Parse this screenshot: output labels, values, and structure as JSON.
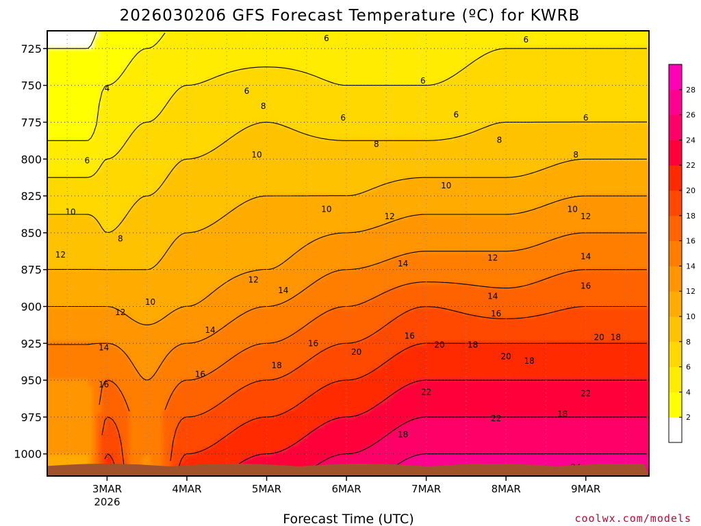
{
  "chart_data": {
    "type": "heatmap",
    "title": "2026030206 GFS Forecast Temperature (ºC) for KWRB",
    "xlabel": "Forecast Time (UTC)",
    "ylabel": "",
    "credit": "coolwx.com/models",
    "y_axis": {
      "quantity": "pressure (hPa)",
      "direction": "decreasing upward",
      "range": [
        1015,
        713
      ],
      "ticks": [
        725,
        750,
        775,
        800,
        825,
        850,
        875,
        900,
        925,
        950,
        975,
        1000
      ]
    },
    "x_axis": {
      "quantity": "forecast date (UTC)",
      "range_days": [
        "2026-03-02T06:00",
        "2026-03-09T19:00"
      ],
      "ticks": [
        {
          "label": "3MAR",
          "sub": "2026",
          "date": "2026-03-03T00:00"
        },
        {
          "label": "4MAR",
          "sub": "",
          "date": "2026-03-04T00:00"
        },
        {
          "label": "5MAR",
          "sub": "",
          "date": "2026-03-05T00:00"
        },
        {
          "label": "6MAR",
          "sub": "",
          "date": "2026-03-06T00:00"
        },
        {
          "label": "7MAR",
          "sub": "",
          "date": "2026-03-07T00:00"
        },
        {
          "label": "8MAR",
          "sub": "",
          "date": "2026-03-08T00:00"
        },
        {
          "label": "9MAR",
          "sub": "",
          "date": "2026-03-09T00:00"
        }
      ]
    },
    "grid": true,
    "colorbar": {
      "placement": "right",
      "levels": [
        0,
        2,
        4,
        6,
        8,
        10,
        12,
        14,
        16,
        18,
        20,
        22,
        24,
        26,
        28,
        30
      ],
      "tick_labels": [
        2,
        4,
        6,
        8,
        10,
        12,
        14,
        16,
        18,
        20,
        22,
        24,
        26,
        28
      ],
      "colors": [
        "#ffffff",
        "#ffff00",
        "#ffec00",
        "#ffd800",
        "#ffc200",
        "#ffab00",
        "#ff9500",
        "#ff7e00",
        "#ff6400",
        "#ff4800",
        "#ff2a00",
        "#ff003a",
        "#ff0068",
        "#ff0090",
        "#ff00b4"
      ]
    },
    "ground_color": "#a0522d",
    "series": [
      {
        "name": "",
        "date": "2026-03-02T18:00",
        "profile": {
          "1000": 12,
          "975": 13,
          "950": 14,
          "925": 14,
          "900": 12,
          "875": 10,
          "850": 9,
          "825": 7,
          "800": 5,
          "775": 3,
          "750": 3,
          "725": 2
        }
      },
      {
        "name": "",
        "date": "2026-03-03T00:00",
        "profile": {
          "1000": 20,
          "975": 18,
          "950": 16,
          "925": 14,
          "900": 12,
          "875": 10,
          "850": 8,
          "825": 7,
          "800": 6,
          "775": 5,
          "750": 4,
          "725": 3
        }
      },
      {
        "name": "",
        "date": "2026-03-03T12:00",
        "profile": {
          "1000": 14,
          "975": 15,
          "950": 14,
          "925": 13,
          "900": 11,
          "875": 10,
          "850": 9,
          "825": 8,
          "800": 7,
          "775": 6,
          "750": 5,
          "725": 4
        }
      },
      {
        "name": "",
        "date": "2026-03-04T00:00",
        "profile": {
          "1000": 20,
          "975": 18,
          "950": 16,
          "925": 14,
          "900": 12,
          "875": 11,
          "850": 10,
          "825": 9,
          "800": 8,
          "775": 7,
          "750": 6,
          "725": 5
        }
      },
      {
        "name": "",
        "date": "2026-03-05T00:00",
        "profile": {
          "1000": 22,
          "975": 20,
          "950": 18,
          "925": 16,
          "900": 14,
          "875": 12,
          "850": 11,
          "825": 10,
          "800": 9,
          "775": 8,
          "750": 7,
          "725": 5
        }
      },
      {
        "name": "",
        "date": "2026-03-06T00:00",
        "profile": {
          "1000": 24,
          "975": 22,
          "950": 20,
          "925": 18,
          "900": 16,
          "875": 14,
          "850": 12,
          "825": 10,
          "800": 9,
          "775": 7,
          "750": 6,
          "725": 5
        }
      },
      {
        "name": "",
        "date": "2026-03-07T00:00",
        "profile": {
          "1000": 26,
          "975": 24,
          "950": 22,
          "925": 20,
          "900": 18,
          "875": 15,
          "850": 13,
          "825": 11,
          "800": 9,
          "775": 7,
          "750": 6,
          "725": 5
        }
      },
      {
        "name": "",
        "date": "2026-03-08T00:00",
        "profile": {
          "1000": 26,
          "975": 24,
          "950": 22,
          "925": 20,
          "900": 17,
          "875": 15,
          "850": 13,
          "825": 11,
          "800": 9,
          "775": 8,
          "750": 7,
          "725": 6
        }
      },
      {
        "name": "",
        "date": "2026-03-09T00:00",
        "profile": {
          "1000": 26,
          "975": 24,
          "950": 22,
          "925": 20,
          "900": 18,
          "875": 16,
          "850": 14,
          "825": 12,
          "800": 10,
          "775": 8,
          "750": 7,
          "725": 6
        }
      }
    ],
    "contour_labels": [
      {
        "text": "4",
        "date": "2026-03-03T00:00",
        "p": 752
      },
      {
        "text": "6",
        "date": "2026-03-04T18:00",
        "p": 754
      },
      {
        "text": "6",
        "date": "2026-03-02T18:00",
        "p": 801
      },
      {
        "text": "6",
        "date": "2026-03-05T18:00",
        "p": 718
      },
      {
        "text": "6",
        "date": "2026-03-06T23:00",
        "p": 747
      },
      {
        "text": "6",
        "date": "2026-03-05T23:00",
        "p": 772
      },
      {
        "text": "6",
        "date": "2026-03-07T09:00",
        "p": 770
      },
      {
        "text": "6",
        "date": "2026-03-08T06:00",
        "p": 719
      },
      {
        "text": "6",
        "date": "2026-03-09T00:00",
        "p": 772
      },
      {
        "text": "8",
        "date": "2026-03-04T23:00",
        "p": 764
      },
      {
        "text": "8",
        "date": "2026-03-06T09:00",
        "p": 790
      },
      {
        "text": "8",
        "date": "2026-03-07T22:00",
        "p": 787
      },
      {
        "text": "8",
        "date": "2026-03-08T21:00",
        "p": 797
      },
      {
        "text": "8",
        "date": "2026-03-03T04:00",
        "p": 854
      },
      {
        "text": "10",
        "date": "2026-03-04T21:00",
        "p": 797
      },
      {
        "text": "10",
        "date": "2026-03-02T13:00",
        "p": 836
      },
      {
        "text": "10",
        "date": "2026-03-05T18:00",
        "p": 834
      },
      {
        "text": "10",
        "date": "2026-03-07T06:00",
        "p": 818
      },
      {
        "text": "10",
        "date": "2026-03-03T13:00",
        "p": 897
      },
      {
        "text": "10",
        "date": "2026-03-08T20:00",
        "p": 834
      },
      {
        "text": "12",
        "date": "2026-03-02T10:00",
        "p": 865
      },
      {
        "text": "12",
        "date": "2026-03-04T20:00",
        "p": 882
      },
      {
        "text": "12",
        "date": "2026-03-03T04:00",
        "p": 904
      },
      {
        "text": "12",
        "date": "2026-03-06T13:00",
        "p": 839
      },
      {
        "text": "12",
        "date": "2026-03-07T20:00",
        "p": 867
      },
      {
        "text": "12",
        "date": "2026-03-09T00:00",
        "p": 839
      },
      {
        "text": "14",
        "date": "2026-03-05T05:00",
        "p": 889
      },
      {
        "text": "14",
        "date": "2026-03-02T23:00",
        "p": 928
      },
      {
        "text": "14",
        "date": "2026-03-04T07:00",
        "p": 916
      },
      {
        "text": "14",
        "date": "2026-03-06T17:00",
        "p": 871
      },
      {
        "text": "14",
        "date": "2026-03-07T20:00",
        "p": 893
      },
      {
        "text": "14",
        "date": "2026-03-09T00:00",
        "p": 866
      },
      {
        "text": "16",
        "date": "2026-03-02T23:00",
        "p": 953
      },
      {
        "text": "16",
        "date": "2026-03-04T04:00",
        "p": 946
      },
      {
        "text": "16",
        "date": "2026-03-05T14:00",
        "p": 925
      },
      {
        "text": "16",
        "date": "2026-03-06T19:00",
        "p": 920
      },
      {
        "text": "16",
        "date": "2026-03-07T21:00",
        "p": 905
      },
      {
        "text": "16",
        "date": "2026-03-09T00:00",
        "p": 886
      },
      {
        "text": "18",
        "date": "2026-03-05T03:00",
        "p": 940
      },
      {
        "text": "18",
        "date": "2026-03-06T17:00",
        "p": 987
      },
      {
        "text": "18",
        "date": "2026-03-07T14:00",
        "p": 926
      },
      {
        "text": "18",
        "date": "2026-03-08T07:00",
        "p": 937
      },
      {
        "text": "18",
        "date": "2026-03-09T09:00",
        "p": 921
      },
      {
        "text": "18",
        "date": "2026-03-08T17:00",
        "p": 973
      },
      {
        "text": "20",
        "date": "2026-03-06T03:00",
        "p": 931
      },
      {
        "text": "20",
        "date": "2026-03-07T04:00",
        "p": 926
      },
      {
        "text": "20",
        "date": "2026-03-08T00:00",
        "p": 934
      },
      {
        "text": "20",
        "date": "2026-03-09T04:00",
        "p": 921
      },
      {
        "text": "22",
        "date": "2026-03-07T00:00",
        "p": 958
      },
      {
        "text": "22",
        "date": "2026-03-07T21:00",
        "p": 976
      },
      {
        "text": "22",
        "date": "2026-03-09T00:00",
        "p": 959
      },
      {
        "text": "24",
        "date": "2026-03-08T21:00",
        "p": 1009
      }
    ]
  }
}
